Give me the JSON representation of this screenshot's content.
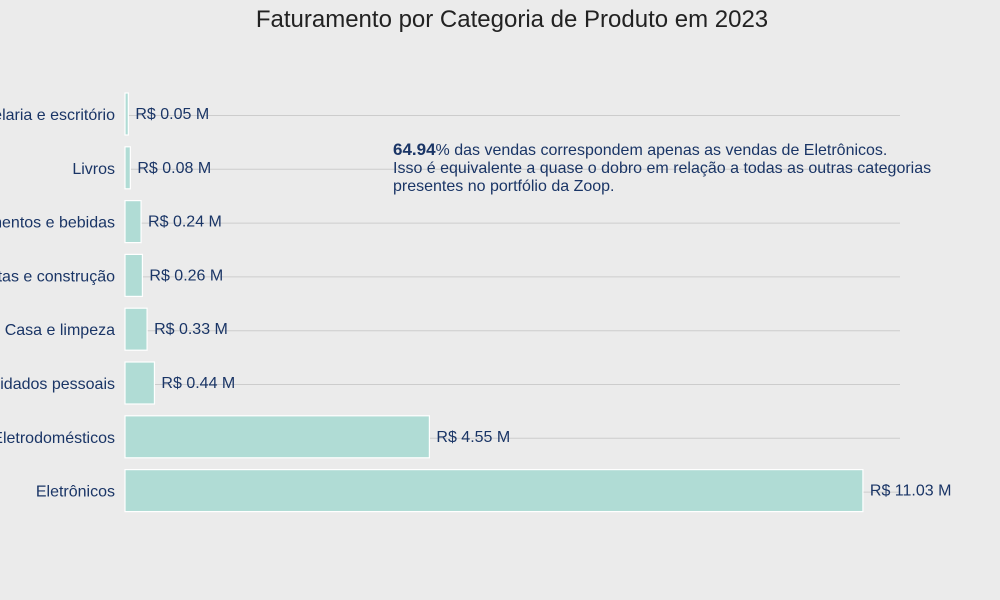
{
  "chart_data": {
    "type": "bar",
    "orientation": "horizontal",
    "title": "Faturamento por Categoria de Produto em 2023",
    "xlabel": "",
    "ylabel": "",
    "categories": [
      "Papelaria e escritório",
      "Livros",
      "Alimentos e bebidas",
      "Ferramentas e construção",
      "Casa e limpeza",
      "Beleza e cuidados pessoais",
      "Eletrodomésticos",
      "Eletrônicos"
    ],
    "values": [
      0.05,
      0.08,
      0.24,
      0.26,
      0.33,
      0.44,
      4.55,
      11.03
    ],
    "data_labels": [
      "R$ 0.05 M",
      "R$ 0.08 M",
      "R$ 0.24 M",
      "R$ 0.26 M",
      "R$ 0.33 M",
      "R$ 0.44 M",
      "R$ 4.55 M",
      "R$ 11.03 M"
    ],
    "xlim": [
      0,
      11.6
    ],
    "grid": "horizontal",
    "legend": "none"
  },
  "annotation": {
    "highlight": "64.94",
    "line1_rest": "% das vendas correspondem apenas as vendas de Eletrônicos.",
    "line2": "Isso é equivalente a quase o dobro em relação a todas as outras categorias",
    "line3": "presentes no portfólio da Zoop."
  },
  "colors": {
    "background": "#ebebeb",
    "bar_fill": "#b0dcd5",
    "bar_stroke": "#ffffff",
    "text": "#1a3566",
    "title": "#222222",
    "grid": "#cccccc"
  }
}
